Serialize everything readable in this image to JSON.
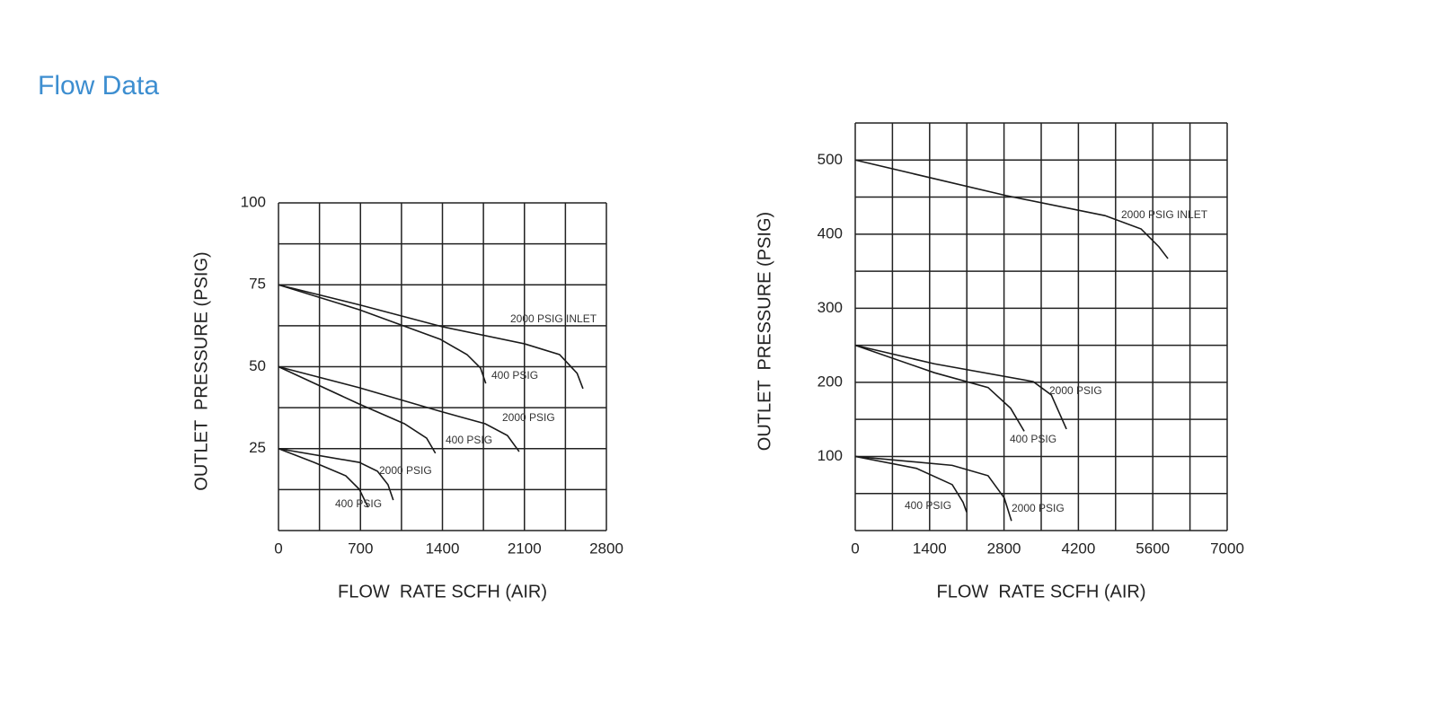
{
  "heading": "Flow Data",
  "chart_data": [
    {
      "type": "line",
      "xlabel": "FLOW  RATE SCFH (AIR)",
      "ylabel": "OUTLET  PRESSURE (PSIG)",
      "xlim": [
        0,
        2800
      ],
      "ylim": [
        0,
        100
      ],
      "xticks": [
        0,
        700,
        1400,
        2100,
        2800
      ],
      "yticks": [
        25,
        50,
        75,
        100
      ],
      "xgrid": [
        0,
        350,
        700,
        1050,
        1400,
        1750,
        2100,
        2450,
        2800
      ],
      "ygrid": [
        0,
        12.5,
        25,
        37.5,
        50,
        62.5,
        75,
        87.5,
        100
      ],
      "grid": true,
      "series": [
        {
          "name": "2000 PSIG INLET",
          "color": "#1a1a1a",
          "x": [
            0,
            700,
            1400,
            2100,
            2400,
            2550,
            2600
          ],
          "values": [
            75,
            68.8,
            62.2,
            57,
            53.7,
            48,
            43.3
          ]
        },
        {
          "name": "400 PSIG",
          "color": "#1a1a1a",
          "x": [
            0,
            690,
            1380,
            1610,
            1725,
            1770
          ],
          "values": [
            75,
            67.4,
            58.4,
            53.7,
            49.6,
            44.9
          ]
        },
        {
          "name": "2000 PSIG",
          "color": "#1a1a1a",
          "x": [
            0,
            690,
            1380,
            1765,
            1955,
            2055
          ],
          "values": [
            50,
            43.6,
            36.4,
            32.6,
            29,
            24.1
          ]
        },
        {
          "name": "400 PSIG",
          "color": "#1a1a1a",
          "x": [
            0,
            690,
            1075,
            1265,
            1340
          ],
          "values": [
            50,
            38.6,
            32.6,
            28.2,
            23.6
          ]
        },
        {
          "name": "2000 PSIG",
          "color": "#1a1a1a",
          "x": [
            0,
            690,
            845,
            935,
            980
          ],
          "values": [
            25,
            20.8,
            18.1,
            14,
            9.3
          ]
        },
        {
          "name": "400 PSIG",
          "color": "#1a1a1a",
          "x": [
            0,
            305,
            575,
            690,
            765
          ],
          "values": [
            25,
            20.8,
            16.7,
            12.6,
            7.1
          ]
        }
      ]
    },
    {
      "type": "line",
      "xlabel": "FLOW  RATE SCFH (AIR)",
      "ylabel": "OUTLET  PRESSURE (PSIG)",
      "xlim": [
        0,
        7000
      ],
      "ylim": [
        0,
        550
      ],
      "xticks": [
        0,
        1400,
        2800,
        4200,
        5600,
        7000
      ],
      "yticks": [
        100,
        200,
        300,
        400,
        500
      ],
      "xgrid": [
        0,
        700,
        1400,
        2100,
        2800,
        3500,
        4200,
        4900,
        5600,
        6300,
        7000
      ],
      "ygrid": [
        0,
        50,
        100,
        150,
        200,
        250,
        300,
        350,
        400,
        450,
        500,
        550
      ],
      "grid": true,
      "series": [
        {
          "name": "2000 PSIG INLET",
          "color": "#1a1a1a",
          "x": [
            0,
            2840,
            4700,
            5380,
            5715,
            5885
          ],
          "values": [
            500,
            452,
            425,
            407,
            383,
            367
          ]
        },
        {
          "name": "2000 PSIG",
          "color": "#1a1a1a",
          "x": [
            0,
            1490,
            3350,
            3690,
            3975
          ],
          "values": [
            250,
            225,
            201,
            183,
            137
          ]
        },
        {
          "name": "400 PSIG",
          "color": "#1a1a1a",
          "x": [
            0,
            1490,
            2500,
            2925,
            3180
          ],
          "values": [
            250,
            213,
            193,
            165,
            134
          ]
        },
        {
          "name": "2000 PSIG",
          "color": "#1a1a1a",
          "x": [
            0,
            1825,
            2500,
            2805,
            2940
          ],
          "values": [
            100,
            88,
            74,
            44,
            13
          ]
        },
        {
          "name": "400 PSIG",
          "color": "#1a1a1a",
          "x": [
            0,
            1150,
            1825,
            2030,
            2095
          ],
          "values": [
            100,
            84,
            62,
            38,
            25
          ]
        }
      ]
    }
  ]
}
